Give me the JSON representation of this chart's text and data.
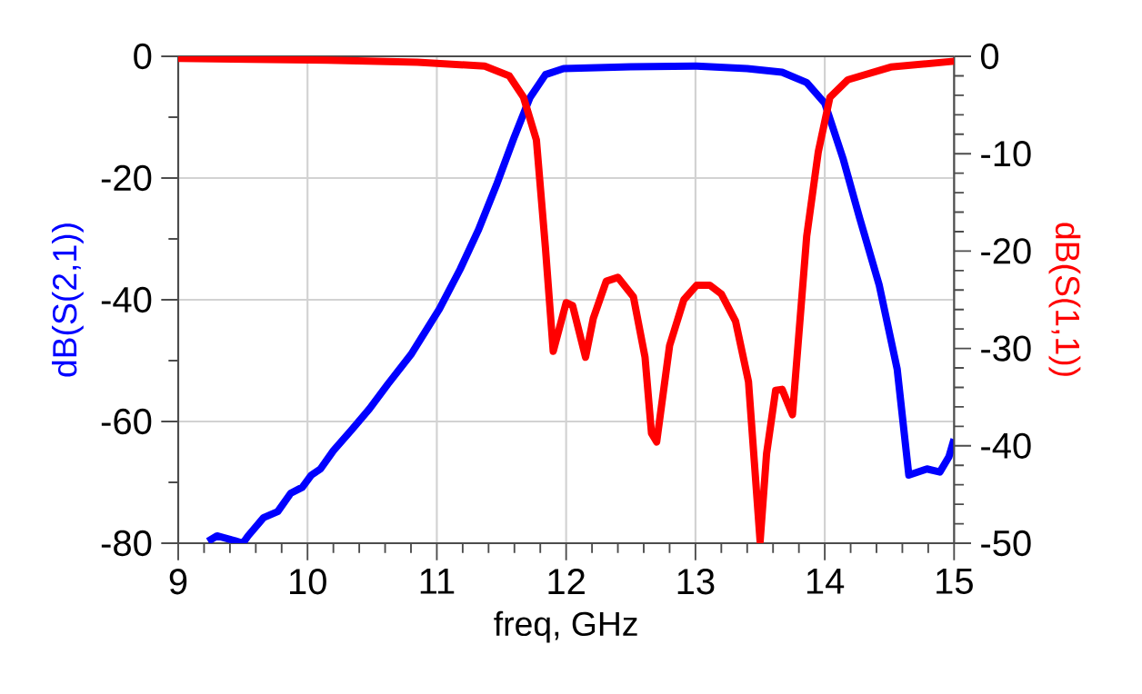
{
  "chart_data": {
    "type": "line",
    "xlabel": "freq, GHz",
    "ylabel": "dB(S(2,1))",
    "y2label": "dB(S(1,1))",
    "xlim": [
      9,
      15
    ],
    "xticks": [
      9,
      10,
      11,
      12,
      13,
      14,
      15
    ],
    "ylim": [
      -80,
      0
    ],
    "yticks": [
      -80,
      -60,
      -40,
      -20,
      0
    ],
    "y2lim": [
      -50,
      0
    ],
    "y2ticks": [
      -50,
      -40,
      -30,
      -20,
      -10,
      0
    ],
    "grid": true,
    "marker": "none",
    "line_style": "solid",
    "series": [
      {
        "color": "#0000ff",
        "axis": "y",
        "x": [
          9.23,
          9.3,
          9.37,
          9.44,
          9.5,
          9.54,
          9.66,
          9.77,
          9.87,
          9.96,
          10.03,
          10.1,
          10.2,
          10.34,
          10.48,
          10.62,
          10.8,
          11.02,
          11.18,
          11.32,
          11.46,
          11.6,
          11.72,
          11.84,
          11.98,
          12.5,
          13.01,
          13.4,
          13.67,
          13.86,
          14.0,
          14.14,
          14.27,
          14.42,
          14.56,
          14.65,
          14.79,
          14.89,
          14.96,
          15.0
        ],
        "values": [
          -79.7,
          -78.8,
          -79.2,
          -79.6,
          -80,
          -78.8,
          -75.8,
          -74.8,
          -71.8,
          -70.8,
          -68.8,
          -67.8,
          -64.8,
          -61.4,
          -57.9,
          -53.9,
          -49,
          -41.5,
          -35,
          -28.6,
          -21.2,
          -13.2,
          -6.8,
          -3,
          -2,
          -1.7,
          -1.6,
          -2,
          -2.6,
          -4.3,
          -7.7,
          -16.7,
          -26.6,
          -37.5,
          -51.4,
          -68.8,
          -67.8,
          -68.3,
          -65.8,
          -62.9
        ]
      },
      {
        "color": "#ff0000",
        "axis": "y2",
        "x": [
          9.0,
          10.15,
          10.85,
          11.37,
          11.56,
          11.67,
          11.77,
          11.84,
          11.9,
          12.0,
          12.05,
          12.15,
          12.21,
          12.31,
          12.4,
          12.52,
          12.61,
          12.66,
          12.7,
          12.8,
          12.91,
          13.01,
          13.11,
          13.2,
          13.31,
          13.41,
          13.5,
          13.55,
          13.62,
          13.67,
          13.75,
          13.86,
          13.95,
          14.04,
          14.18,
          14.51,
          15.0
        ],
        "values": [
          -0.2,
          -0.4,
          -0.6,
          -1,
          -2,
          -4.2,
          -8.6,
          -19.7,
          -30.3,
          -25.3,
          -25.6,
          -30.9,
          -26.9,
          -23.1,
          -22.7,
          -24.7,
          -30.9,
          -38.7,
          -39.6,
          -29.7,
          -25,
          -23.5,
          -23.5,
          -24.4,
          -27.2,
          -33.4,
          -49.8,
          -40.8,
          -34.3,
          -34.2,
          -36.8,
          -18.5,
          -9.8,
          -4.2,
          -2.4,
          -1.1,
          -0.5
        ]
      }
    ]
  }
}
